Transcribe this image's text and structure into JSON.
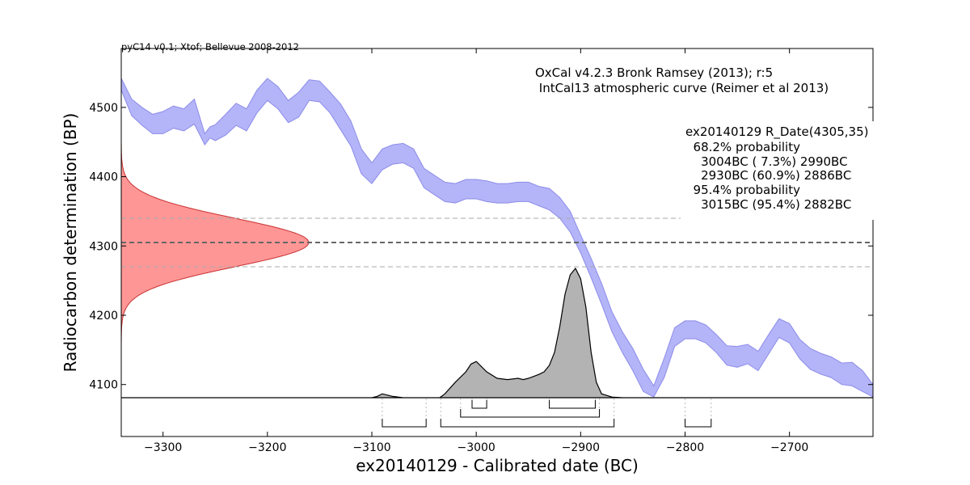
{
  "chart_data": {
    "type": "area",
    "header_note": "pyC14 v0.1; Xtof; Bellevue 2008-2012",
    "curve_title": [
      "OxCal v4.2.3 Bronk Ramsey (2013); r:5",
      " IntCal13 atmospheric curve (Reimer et al 2013)"
    ],
    "result_box": [
      "ex20140129 R_Date(4305,35)",
      "  68.2% probability",
      "    3004BC ( 7.3%) 2990BC",
      "    2930BC (60.9%) 2886BC",
      "  95.4% probability",
      "    3015BC (95.4%) 2882BC"
    ],
    "xlabel": "ex20140129 - Calibrated date (BC)",
    "ylabel": "Radiocarbon determination (BP)",
    "xlim": [
      -3340,
      -2620
    ],
    "ylim": [
      4025,
      4585
    ],
    "xticks": [
      -3300,
      -3200,
      -3100,
      -3000,
      -2900,
      -2800,
      -2700
    ],
    "xtick_labels": [
      "−3300",
      "−3200",
      "−3100",
      "−3000",
      "−2900",
      "−2800",
      "−2700"
    ],
    "yticks": [
      4100,
      4200,
      4300,
      4400,
      4500
    ],
    "ytick_labels": [
      "4100",
      "4200",
      "4300",
      "4400",
      "4500"
    ],
    "radiocarbon_date": {
      "mean": 4305,
      "sigma": 35
    },
    "colors": {
      "calibration_band": "#b4b4f8",
      "calibration_edge": "#8c8cea",
      "date_fill": "#ff9696",
      "date_edge": "#c83232",
      "posterior_fill": "#b3b3b3",
      "posterior_edge": "#000000"
    },
    "calibration_curve": {
      "x": [
        -3340,
        -3330,
        -3320,
        -3310,
        -3300,
        -3290,
        -3280,
        -3270,
        -3260,
        -3255,
        -3250,
        -3240,
        -3230,
        -3220,
        -3210,
        -3200,
        -3190,
        -3180,
        -3170,
        -3160,
        -3150,
        -3140,
        -3130,
        -3120,
        -3110,
        -3100,
        -3090,
        -3080,
        -3070,
        -3060,
        -3050,
        -3040,
        -3030,
        -3020,
        -3010,
        -3000,
        -2990,
        -2980,
        -2970,
        -2960,
        -2950,
        -2940,
        -2930,
        -2920,
        -2910,
        -2900,
        -2890,
        -2880,
        -2870,
        -2860,
        -2850,
        -2840,
        -2830,
        -2820,
        -2810,
        -2800,
        -2790,
        -2780,
        -2770,
        -2760,
        -2750,
        -2740,
        -2730,
        -2720,
        -2710,
        -2700,
        -2690,
        -2680,
        -2670,
        -2660,
        -2650,
        -2640,
        -2630,
        -2620
      ],
      "upper": [
        4542,
        4512,
        4500,
        4490,
        4494,
        4502,
        4498,
        4512,
        4462,
        4472,
        4475,
        4490,
        4506,
        4498,
        4525,
        4542,
        4530,
        4510,
        4522,
        4540,
        4538,
        4522,
        4505,
        4480,
        4440,
        4420,
        4440,
        4446,
        4448,
        4440,
        4412,
        4402,
        4392,
        4390,
        4396,
        4396,
        4394,
        4390,
        4390,
        4392,
        4392,
        4386,
        4383,
        4370,
        4350,
        4316,
        4282,
        4246,
        4205,
        4176,
        4152,
        4122,
        4098,
        4138,
        4182,
        4192,
        4192,
        4186,
        4172,
        4156,
        4155,
        4158,
        4148,
        4172,
        4195,
        4188,
        4165,
        4152,
        4145,
        4140,
        4131,
        4132,
        4120,
        4100
      ],
      "lower": [
        4525,
        4488,
        4474,
        4462,
        4462,
        4470,
        4466,
        4476,
        4446,
        4456,
        4452,
        4460,
        4474,
        4466,
        4492,
        4510,
        4498,
        4478,
        4486,
        4510,
        4508,
        4492,
        4468,
        4444,
        4404,
        4390,
        4410,
        4418,
        4420,
        4412,
        4384,
        4374,
        4364,
        4362,
        4368,
        4368,
        4364,
        4362,
        4362,
        4364,
        4364,
        4358,
        4352,
        4340,
        4320,
        4290,
        4254,
        4216,
        4176,
        4146,
        4120,
        4090,
        4082,
        4110,
        4155,
        4166,
        4166,
        4160,
        4146,
        4128,
        4125,
        4130,
        4120,
        4144,
        4168,
        4160,
        4137,
        4122,
        4115,
        4110,
        4100,
        4098,
        4090,
        4082
      ]
    },
    "posterior": {
      "x": [
        -3340,
        -3100,
        -3095,
        -3090,
        -3085,
        -3080,
        -3070,
        -3050,
        -3035,
        -3030,
        -3020,
        -3010,
        -3005,
        -3000,
        -2995,
        -2990,
        -2980,
        -2970,
        -2960,
        -2955,
        -2950,
        -2940,
        -2935,
        -2930,
        -2925,
        -2920,
        -2915,
        -2910,
        -2905,
        -2900,
        -2895,
        -2890,
        -2885,
        -2880,
        -2870,
        -2860,
        -2620
      ],
      "density": [
        0,
        0,
        0.01,
        0.03,
        0.02,
        0.01,
        0,
        0,
        0,
        0.03,
        0.12,
        0.2,
        0.26,
        0.28,
        0.24,
        0.2,
        0.15,
        0.14,
        0.15,
        0.14,
        0.15,
        0.18,
        0.2,
        0.25,
        0.35,
        0.55,
        0.8,
        0.95,
        1.0,
        0.92,
        0.7,
        0.35,
        0.12,
        0.03,
        0.005,
        0,
        0
      ]
    },
    "interval_brackets": [
      {
        "level": 1,
        "from": -3004,
        "to": -2990
      },
      {
        "level": 1,
        "from": -2930,
        "to": -2886
      },
      {
        "level": 2,
        "from": -3015,
        "to": -2882
      },
      {
        "level": 3,
        "from": -3090,
        "to": -3048
      },
      {
        "level": 3,
        "from": -3034,
        "to": -2868
      },
      {
        "level": 3,
        "from": -2800,
        "to": -2775
      }
    ]
  }
}
